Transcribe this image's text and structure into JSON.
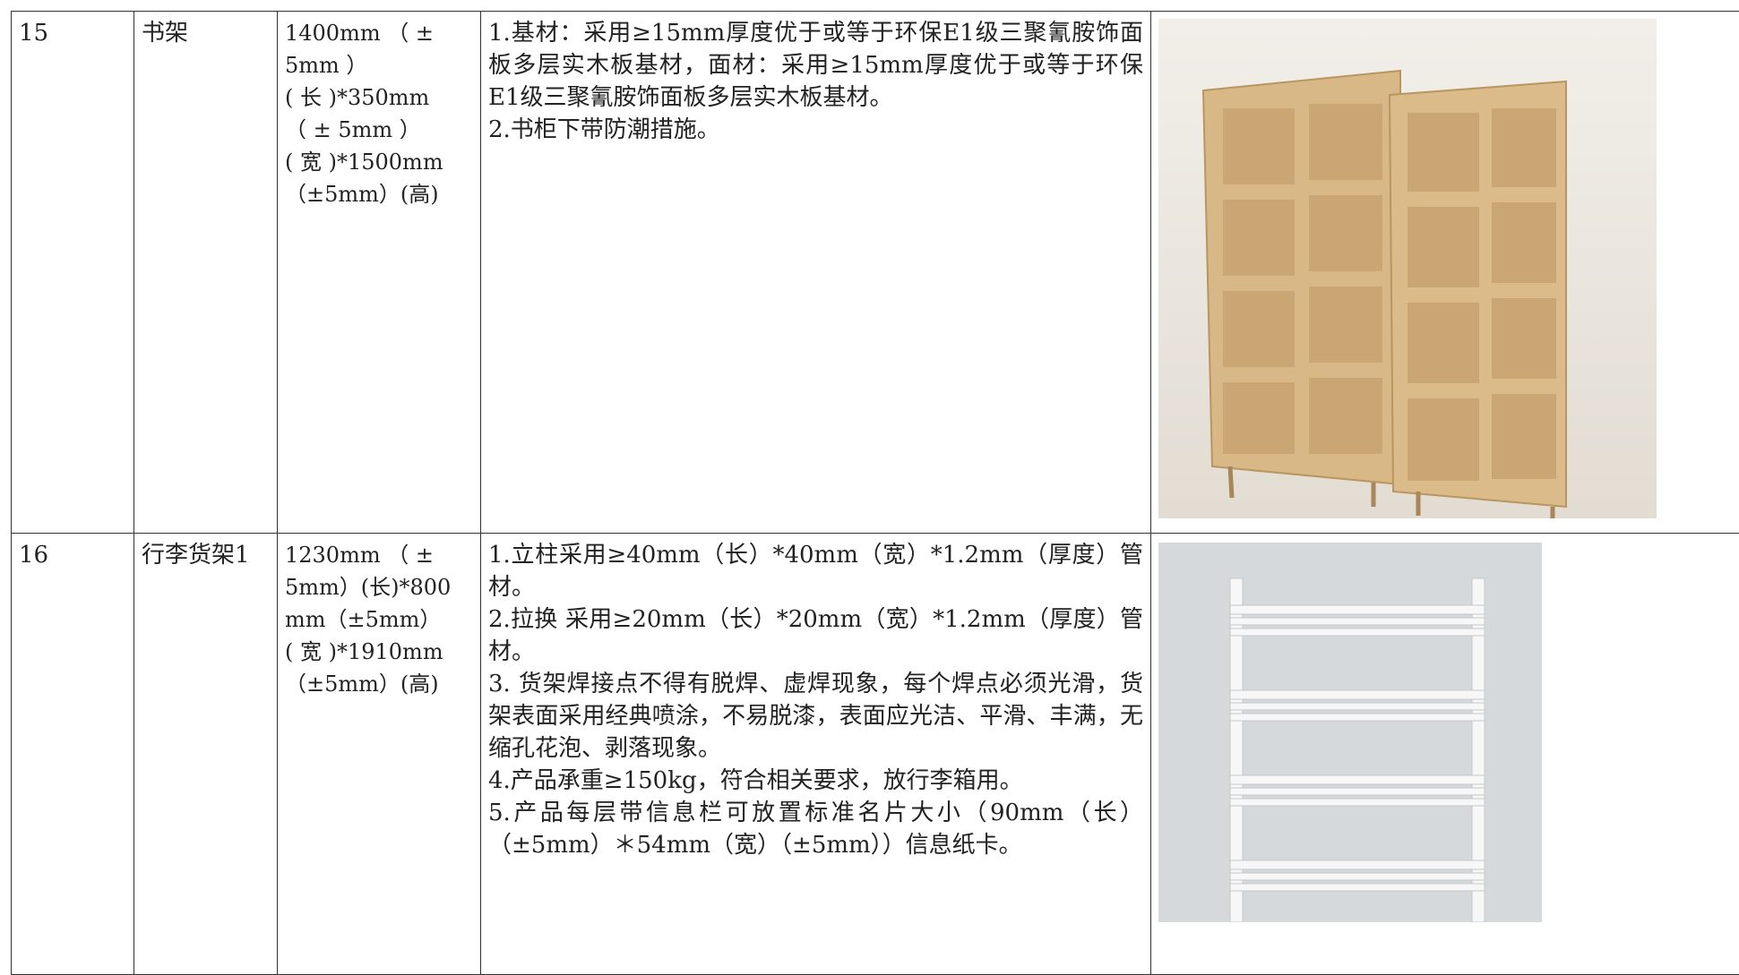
{
  "rows": [
    {
      "no": "15",
      "name": "书架",
      "size": [
        "1400mm （ ±",
        "5mm ）",
        "( 长 )*350mm",
        "（ ± 5mm ）",
        "( 宽 )*1500mm",
        "（±5mm）(高)"
      ],
      "description": [
        "1.基材：采用≥15mm厚度优于或等于环保E1级三聚氰胺饰面板多层实木板基材，面材：采用≥15mm厚度优于或等于环保E1级三聚氰胺饰面板多层实木板基材。",
        "2.书柜下带防潮措施。"
      ]
    },
    {
      "no": "16",
      "name": "行李货架1",
      "size": [
        "1230mm （ ±",
        "5mm）(长)*800",
        "mm（±5mm）",
        "( 宽 )*1910mm",
        "（±5mm）(高)"
      ],
      "description": [
        "1.立柱采用≥40mm（长）*40mm（宽）*1.2mm（厚度）管材。",
        "2.拉换 采用≥20mm（长）*20mm（宽）*1.2mm（厚度）管材。",
        "3. 货架焊接点不得有脱焊、虚焊现象，每个焊点必须光滑，货架表面采用经典喷涂，不易脱漆，表面应光洁、平滑、丰满，无缩孔花泡、剥落现象。",
        "4.产品承重≥150kg，符合相关要求，放行李箱用。",
        "5.产品每层带信息栏可放置标准名片大小（90mm（长） （±5mm）＊54mm（宽）（±5mm））信息纸卡。"
      ]
    }
  ]
}
